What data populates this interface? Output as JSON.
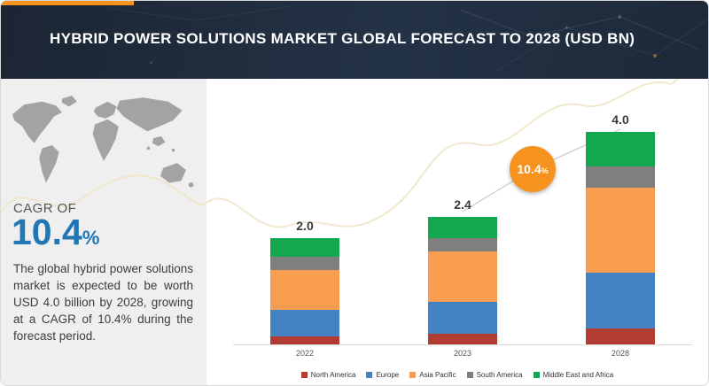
{
  "header": {
    "title": "HYBRID POWER SOLUTIONS MARKET GLOBAL FORECAST TO 2028 (USD BN)"
  },
  "sidebar": {
    "cagr_label": "CAGR OF",
    "cagr_value": "10.4",
    "cagr_unit": "%",
    "description": "The global hybrid power solutions market is expected to be worth USD 4.0 billion by 2028, growing at a CAGR of 10.4% during the forecast period."
  },
  "annotation_badge": {
    "value": "10.4",
    "unit": "%"
  },
  "colors": {
    "accent_orange": "#f6921e",
    "header_navy": "#222f40",
    "cagr_blue": "#2077b4"
  },
  "chart_data": {
    "type": "bar",
    "stacked": true,
    "title": "Hybrid Power Solutions Market Global Forecast to 2028 (USD BN)",
    "unit": "USD BN",
    "categories": [
      "2022",
      "2023",
      "2028"
    ],
    "totals": [
      2.0,
      2.4,
      4.0
    ],
    "total_labels": [
      "2.0",
      "2.4",
      "4.0"
    ],
    "cagr_annotation": "10.4%",
    "legend_position": "bottom",
    "grid": false,
    "series": [
      {
        "name": "North America",
        "color": "#b23b32",
        "values": [
          0.15,
          0.2,
          0.3
        ]
      },
      {
        "name": "Europe",
        "color": "#4383c4",
        "values": [
          0.5,
          0.6,
          1.05
        ]
      },
      {
        "name": "Asia Pacific",
        "color": "#f99d50",
        "values": [
          0.75,
          0.95,
          1.6
        ]
      },
      {
        "name": "South America",
        "color": "#7f7f7f",
        "values": [
          0.25,
          0.25,
          0.4
        ]
      },
      {
        "name": "Middle East and Africa",
        "color": "#13a750",
        "values": [
          0.35,
          0.4,
          0.65
        ]
      }
    ]
  }
}
